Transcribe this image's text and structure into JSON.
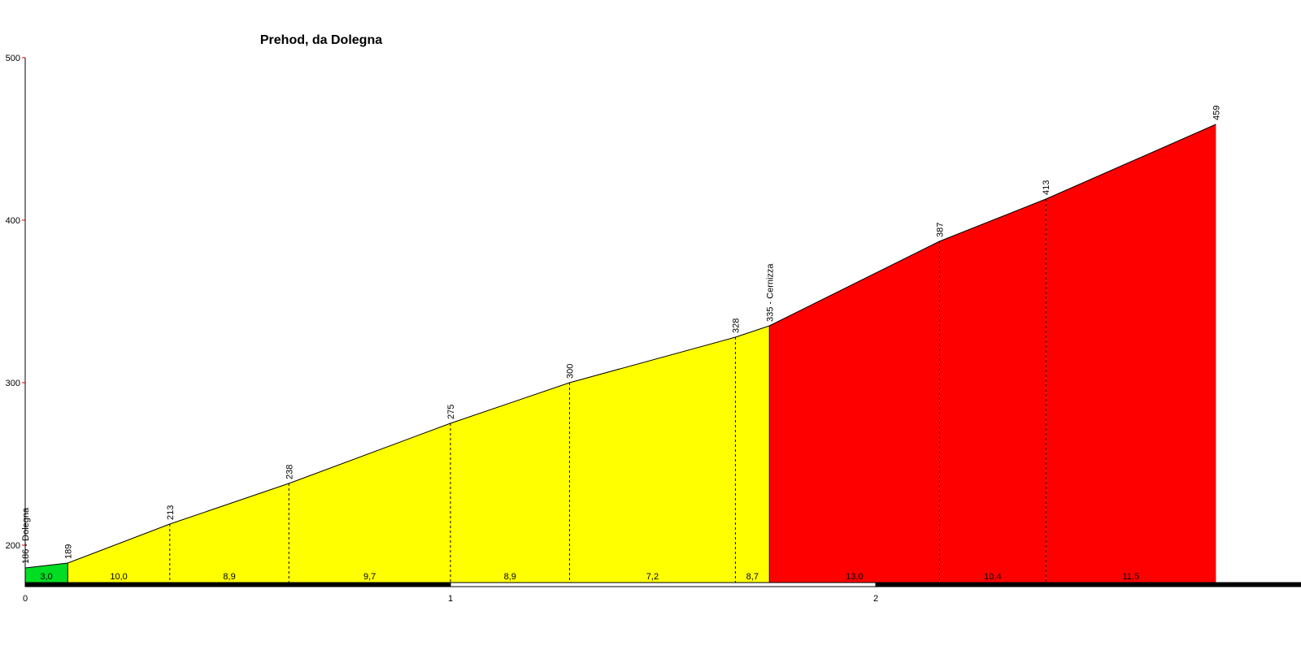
{
  "chart_data": {
    "type": "area",
    "title": "Prehod, da Dolegna",
    "xlabel": "",
    "ylabel": "",
    "xlim": [
      0,
      3
    ],
    "ylim": [
      180,
      500
    ],
    "y_ticks": [
      "200",
      "300",
      "400",
      "500"
    ],
    "x_ticks": [
      "0",
      "1",
      "2"
    ],
    "points": [
      {
        "x": 0.0,
        "y": 186,
        "label": "186 - Dolegna"
      },
      {
        "x": 0.1,
        "y": 189,
        "label": "189"
      },
      {
        "x": 0.34,
        "y": 213,
        "label": "213"
      },
      {
        "x": 0.62,
        "y": 238,
        "label": "238"
      },
      {
        "x": 1.0,
        "y": 275,
        "label": "275"
      },
      {
        "x": 1.28,
        "y": 300,
        "label": "300"
      },
      {
        "x": 1.67,
        "y": 328,
        "label": "328"
      },
      {
        "x": 1.75,
        "y": 335,
        "label": "335 - Cernizza"
      },
      {
        "x": 2.15,
        "y": 387,
        "label": "387"
      },
      {
        "x": 2.4,
        "y": 413,
        "label": "413"
      },
      {
        "x": 2.8,
        "y": 459,
        "label": "459"
      }
    ],
    "segments": [
      {
        "gradient": "3,0",
        "color": "#00dd22"
      },
      {
        "gradient": "10,0",
        "color": "#ffff00"
      },
      {
        "gradient": "8,9",
        "color": "#ffff00"
      },
      {
        "gradient": "9,7",
        "color": "#ffff00"
      },
      {
        "gradient": "8,9",
        "color": "#ffff00"
      },
      {
        "gradient": "7,2",
        "color": "#ffff00"
      },
      {
        "gradient": "8,7",
        "color": "#ffff00"
      },
      {
        "gradient": "13,0",
        "color": "#ff0000"
      },
      {
        "gradient": "10,4",
        "color": "#ff0000"
      },
      {
        "gradient": "11,5",
        "color": "#ff0000"
      }
    ],
    "grid": false,
    "axis_color": "#000000",
    "y_tick_mark_color": "#cc0000"
  }
}
